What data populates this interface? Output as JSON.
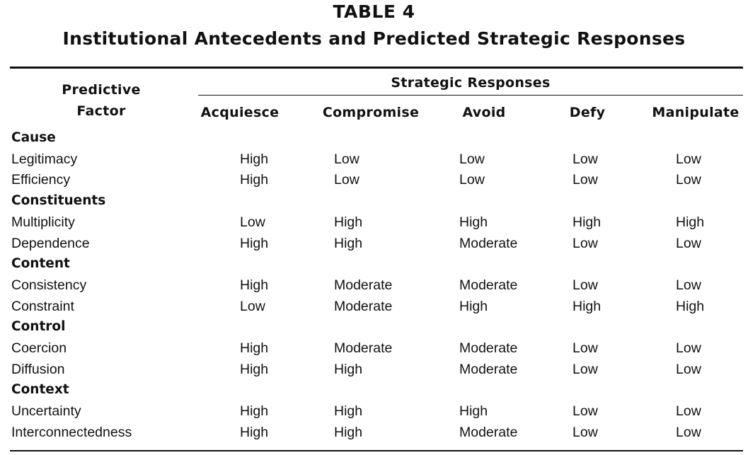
{
  "table": {
    "number": "TABLE 4",
    "title": "Institutional Antecedents and Predicted Strategic Responses",
    "row_header_line1": "Predictive",
    "row_header_line2": "Factor",
    "group_header": "Strategic Responses",
    "columns": [
      "Acquiesce",
      "Compromise",
      "Avoid",
      "Defy",
      "Manipulate"
    ],
    "rows": [
      {
        "label": "Cause",
        "category": true,
        "values": []
      },
      {
        "label": "Legitimacy",
        "category": false,
        "values": [
          "High",
          "Low",
          "Low",
          "Low",
          "Low"
        ]
      },
      {
        "label": "Efficiency",
        "category": false,
        "values": [
          "High",
          "Low",
          "Low",
          "Low",
          "Low"
        ]
      },
      {
        "label": "Constituents",
        "category": true,
        "values": []
      },
      {
        "label": "Multiplicity",
        "category": false,
        "values": [
          "Low",
          "High",
          "High",
          "High",
          "High"
        ]
      },
      {
        "label": "Dependence",
        "category": false,
        "values": [
          "High",
          "High",
          "Moderate",
          "Low",
          "Low"
        ]
      },
      {
        "label": "Content",
        "category": true,
        "values": []
      },
      {
        "label": "Consistency",
        "category": false,
        "values": [
          "High",
          "Moderate",
          "Moderate",
          "Low",
          "Low"
        ]
      },
      {
        "label": "Constraint",
        "category": false,
        "values": [
          "Low",
          "Moderate",
          "High",
          "High",
          "High"
        ]
      },
      {
        "label": "Control",
        "category": true,
        "values": []
      },
      {
        "label": "Coercion",
        "category": false,
        "values": [
          "High",
          "Moderate",
          "Moderate",
          "Low",
          "Low"
        ]
      },
      {
        "label": "Diffusion",
        "category": false,
        "values": [
          "High",
          "High",
          "Moderate",
          "Low",
          "Low"
        ]
      },
      {
        "label": "Context",
        "category": true,
        "values": []
      },
      {
        "label": "Uncertainty",
        "category": false,
        "values": [
          "High",
          "High",
          "High",
          "Low",
          "Low"
        ]
      },
      {
        "label": "Interconnectedness",
        "category": false,
        "values": [
          "High",
          "High",
          "Moderate",
          "Low",
          "Low"
        ]
      }
    ]
  }
}
